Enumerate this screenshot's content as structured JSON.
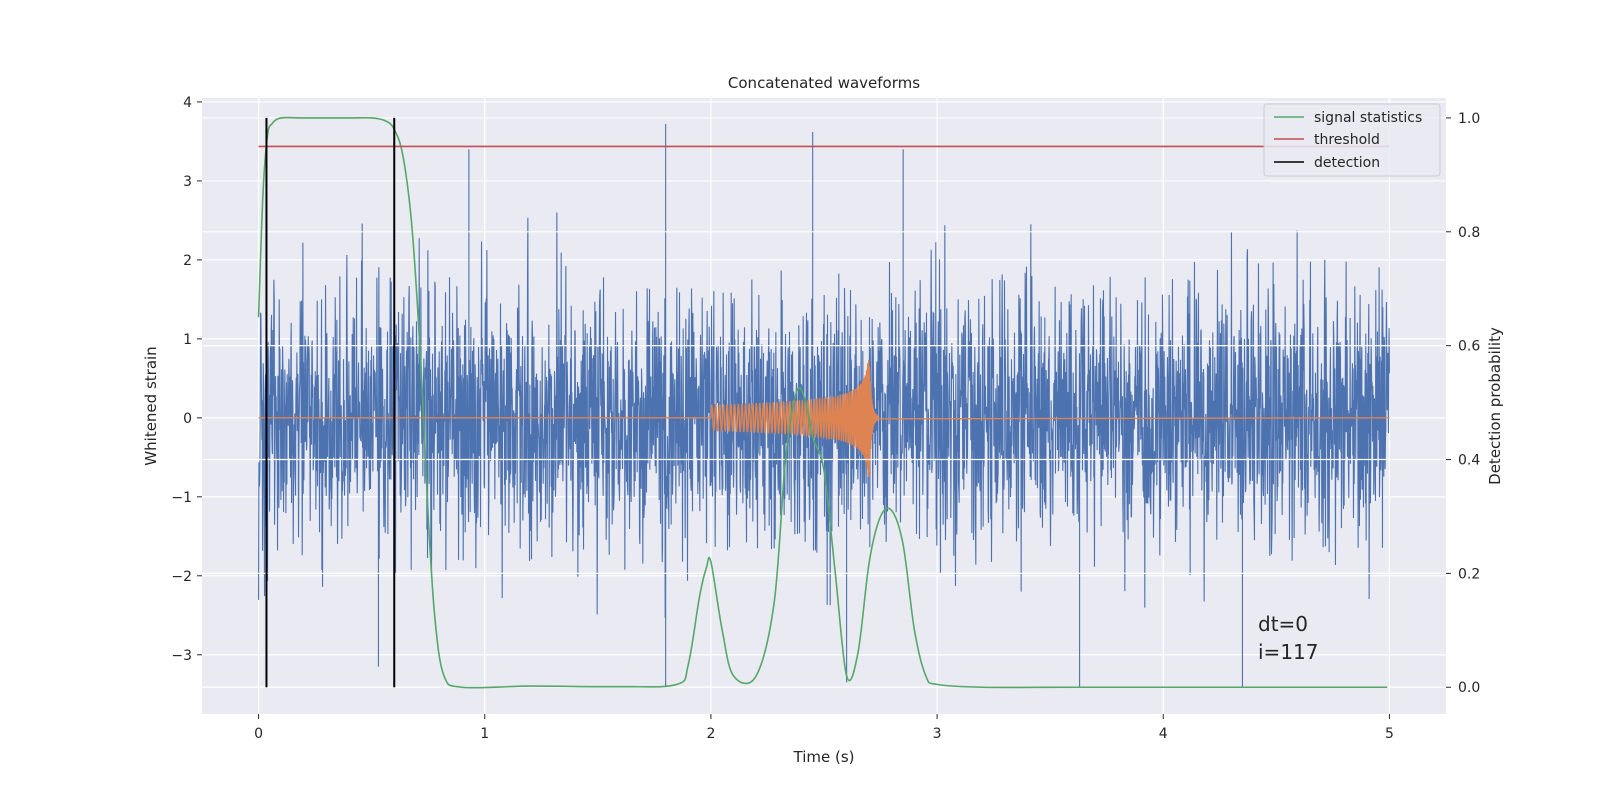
{
  "chart_data": {
    "type": "line",
    "title": "Concatenated waveforms",
    "xlabel": "Time (s)",
    "ylabel": "Whitened strain",
    "y2label": "Detection probability",
    "xlim": [
      -0.25,
      5.25
    ],
    "ylim": [
      -3.75,
      4.05
    ],
    "y2lim": [
      -0.047,
      1.035
    ],
    "xticks": [
      0,
      1,
      2,
      3,
      4,
      5
    ],
    "yticks": [
      -3,
      -2,
      -1,
      0,
      1,
      2,
      3,
      4
    ],
    "y2ticks": [
      0.0,
      0.2,
      0.4,
      0.6,
      0.8,
      1.0
    ],
    "xtick_labels": [
      "0",
      "1",
      "2",
      "3",
      "4",
      "5"
    ],
    "ytick_labels": [
      "−3",
      "−2",
      "−1",
      "0",
      "1",
      "2",
      "3",
      "4"
    ],
    "y2tick_labels": [
      "0.0",
      "0.2",
      "0.4",
      "0.6",
      "0.8",
      "1.0"
    ],
    "grid": true,
    "legend_position": "top-right",
    "legend": [
      {
        "label": "signal statistics",
        "color": "#55a868"
      },
      {
        "label": "threshold",
        "color": "#c44e52"
      },
      {
        "label": "detection",
        "color": "#000000"
      }
    ],
    "annotations": [
      "dt=0",
      "i=117"
    ],
    "colors": {
      "strain": "#4c72b0",
      "injected_waveform": "#dd8452",
      "signal_statistics": "#55a868",
      "threshold": "#c44e52",
      "detection": "#000000"
    },
    "noise": {
      "x_range": [
        0,
        5
      ],
      "typical_amplitude": 0.8,
      "spikes": [
        {
          "x": 0.93,
          "y": 3.4
        },
        {
          "x": 1.8,
          "y": 3.72
        },
        {
          "x": 2.45,
          "y": 3.62
        },
        {
          "x": 2.85,
          "y": 3.4
        },
        {
          "x": 1.8,
          "y": -3.4
        },
        {
          "x": 2.6,
          "y": -3.35
        },
        {
          "x": 3.63,
          "y": -3.42
        },
        {
          "x": 4.35,
          "y": -3.42
        },
        {
          "x": 0.53,
          "y": -3.15
        }
      ]
    },
    "injected_waveform": {
      "start": 2.0,
      "merger": 2.7,
      "end": 2.74,
      "peak_amplitude": 0.75
    },
    "signal_statistics": {
      "x": [
        0,
        0.02,
        0.04,
        0.06,
        0.1,
        0.2,
        0.4,
        0.5,
        0.56,
        0.6,
        0.64,
        0.68,
        0.72,
        0.75,
        0.78,
        0.82,
        0.9,
        1.2,
        1.6,
        1.85,
        1.9,
        1.95,
        1.98,
        2.0,
        2.05,
        2.1,
        2.2,
        2.28,
        2.33,
        2.38,
        2.42,
        2.45,
        2.5,
        2.55,
        2.6,
        2.65,
        2.7,
        2.75,
        2.8,
        2.85,
        2.9,
        2.95,
        3.0,
        3.2,
        3.6,
        4.0,
        4.5,
        4.99
      ],
      "y": [
        0.65,
        0.87,
        0.97,
        0.99,
        1.0,
        1.0,
        1.0,
        1.0,
        0.995,
        0.98,
        0.93,
        0.8,
        0.55,
        0.3,
        0.12,
        0.02,
        0.0,
        0.002,
        0.001,
        0.005,
        0.04,
        0.16,
        0.21,
        0.22,
        0.1,
        0.02,
        0.02,
        0.15,
        0.4,
        0.52,
        0.5,
        0.44,
        0.38,
        0.2,
        0.02,
        0.06,
        0.22,
        0.3,
        0.31,
        0.25,
        0.1,
        0.02,
        0.005,
        0.0,
        0.0,
        0.0,
        0.0,
        0.0
      ]
    },
    "threshold": {
      "y": 0.95,
      "x_range": [
        0,
        5
      ]
    },
    "detections": [
      0.035,
      0.6
    ]
  }
}
